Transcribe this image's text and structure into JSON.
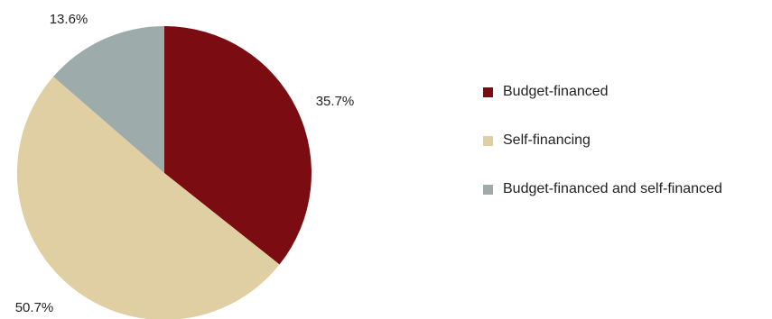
{
  "chart_data": {
    "type": "pie",
    "start_angle_deg": 0,
    "direction": "clockwise",
    "slices": [
      {
        "label": "Budget-financed",
        "value": 35.7,
        "value_label": "35.7%",
        "color": "#7b0c12"
      },
      {
        "label": "Self-financing",
        "value": 50.7,
        "value_label": "50.7%",
        "color": "#e0cfa3"
      },
      {
        "label": "Budget-financed and self-financed",
        "value": 13.6,
        "value_label": "13.6%",
        "color": "#9eabab"
      }
    ],
    "legend_position": "right",
    "title": ""
  }
}
